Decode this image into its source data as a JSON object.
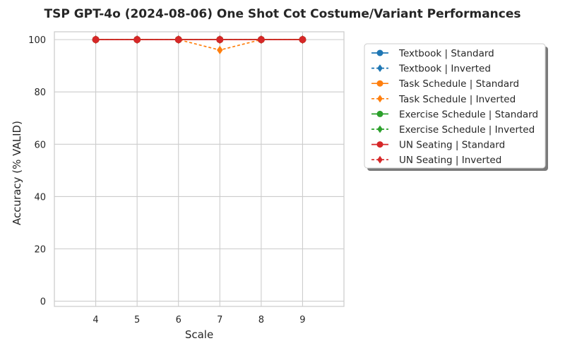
{
  "chart_data": {
    "type": "line",
    "title": "TSP GPT-4o (2024-08-06) One Shot Cot Costume/Variant Performances",
    "xlabel": "Scale",
    "ylabel": "Accuracy (% VALID)",
    "x": [
      4,
      5,
      6,
      7,
      8,
      9
    ],
    "xlim": [
      3,
      10
    ],
    "ylim": [
      -2,
      103
    ],
    "xticks": [
      "4",
      "5",
      "6",
      "7",
      "8",
      "9"
    ],
    "yticks": [
      "0",
      "20",
      "40",
      "60",
      "80",
      "100"
    ],
    "grid": true,
    "legend_position": "outside-right",
    "series": [
      {
        "name": "Textbook | Standard",
        "color": "#1f77b4",
        "style": "solid",
        "marker": "circle",
        "values": [
          100,
          100,
          100,
          100,
          100,
          100
        ]
      },
      {
        "name": "Textbook | Inverted",
        "color": "#1f77b4",
        "style": "dashed",
        "marker": "diamond",
        "values": [
          100,
          100,
          100,
          100,
          100,
          100
        ]
      },
      {
        "name": "Task Schedule | Standard",
        "color": "#ff7f0e",
        "style": "solid",
        "marker": "circle",
        "values": [
          100,
          100,
          100,
          100,
          100,
          100
        ]
      },
      {
        "name": "Task Schedule | Inverted",
        "color": "#ff7f0e",
        "style": "dashed",
        "marker": "diamond",
        "values": [
          100,
          100,
          100,
          96,
          100,
          100
        ]
      },
      {
        "name": "Exercise Schedule | Standard",
        "color": "#2ca02c",
        "style": "solid",
        "marker": "circle",
        "values": [
          100,
          100,
          100,
          100,
          100,
          100
        ]
      },
      {
        "name": "Exercise Schedule | Inverted",
        "color": "#2ca02c",
        "style": "dashed",
        "marker": "diamond",
        "values": [
          100,
          100,
          100,
          100,
          100,
          100
        ]
      },
      {
        "name": "UN Seating | Standard",
        "color": "#d62728",
        "style": "solid",
        "marker": "circle",
        "values": [
          100,
          100,
          100,
          100,
          100,
          100
        ]
      },
      {
        "name": "UN Seating | Inverted",
        "color": "#d62728",
        "style": "dashed",
        "marker": "diamond",
        "values": [
          100,
          100,
          100,
          100,
          100,
          100
        ]
      }
    ]
  }
}
